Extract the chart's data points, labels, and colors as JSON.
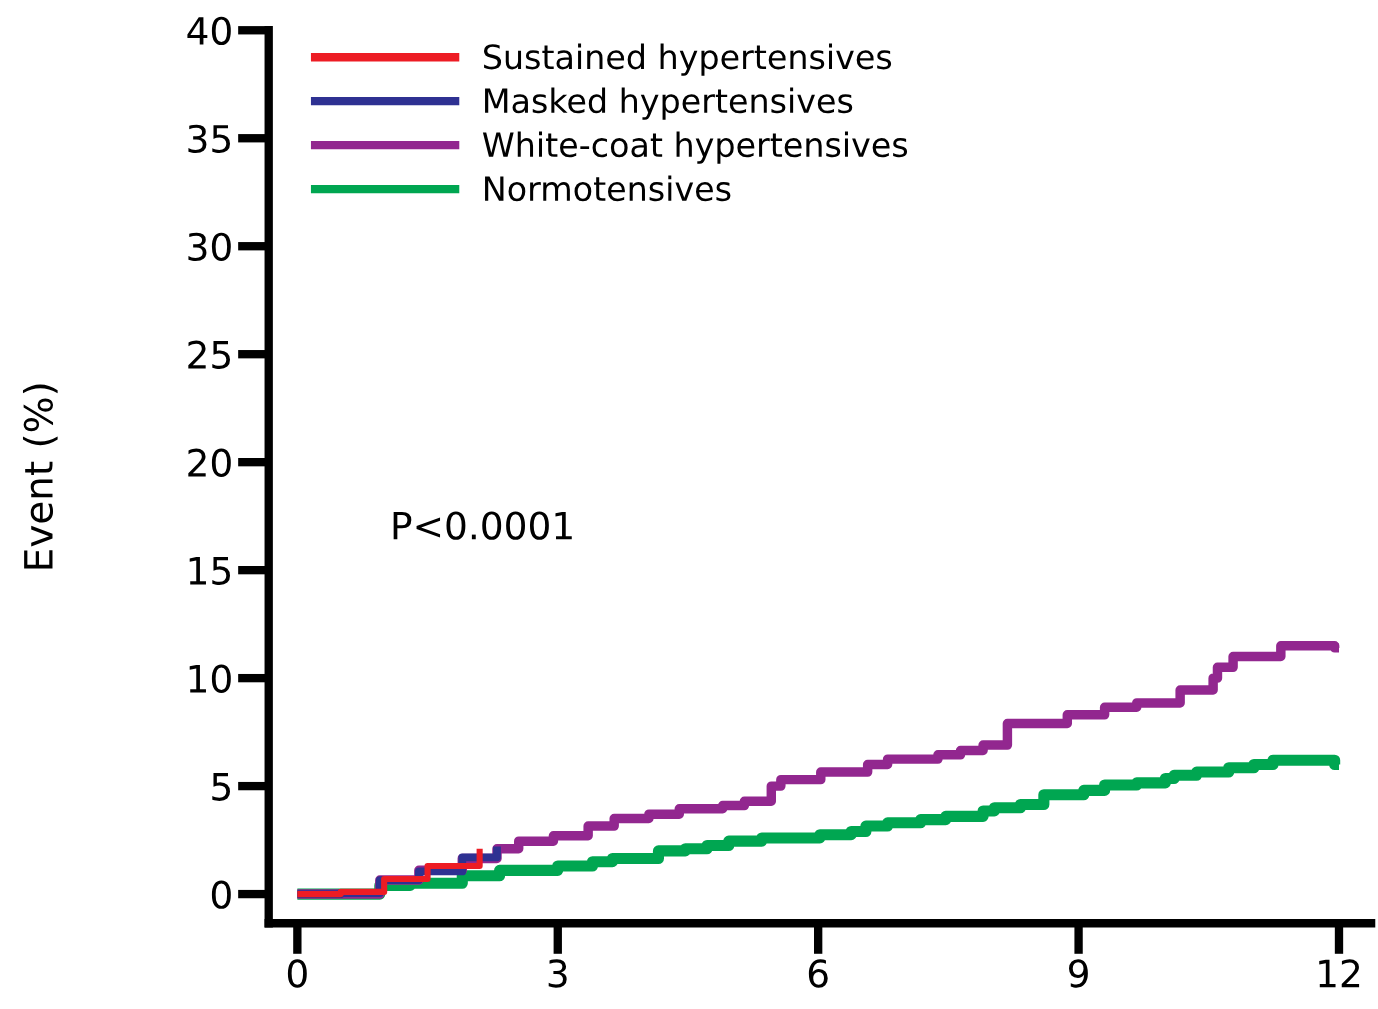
{
  "chart_data": {
    "type": "step",
    "ylabel": "Event (%)",
    "annotations": [
      "P<0.0001"
    ],
    "xlim": [
      -0.33,
      12.37
    ],
    "xticks": [
      0,
      3,
      6,
      9,
      12
    ],
    "ylim": [
      -1.35,
      40
    ],
    "yticks": [
      0,
      5,
      10,
      15,
      20,
      25,
      30,
      35,
      40
    ],
    "grid": false,
    "legend": "top left",
    "line_style": "solid",
    "marker": "none",
    "series": [
      {
        "name": "Sustained hypertensives",
        "color": "#ed1c24",
        "x": [
          0,
          0.5,
          1.0,
          1.5,
          2.1
        ],
        "values": [
          0,
          0.1,
          0.7,
          1.3,
          2.1
        ]
      },
      {
        "name": "Masked hypertensives",
        "color": "#2e3192",
        "x": [
          0,
          0.5,
          0.95,
          1.4,
          1.9,
          2.3
        ],
        "values": [
          0,
          0.05,
          0.65,
          1.05,
          1.7,
          2.2
        ]
      },
      {
        "name": "White-coat hypertensives",
        "color": "#92278f",
        "x": [
          0,
          0.5,
          0.95,
          1.4,
          1.9,
          2.3,
          2.55,
          2.95,
          3.35,
          3.65,
          4.05,
          4.4,
          4.9,
          5.15,
          5.46,
          5.57,
          6.03,
          6.57,
          6.8,
          7.38,
          7.64,
          7.9,
          8.18,
          8.87,
          9.3,
          9.67,
          10.17,
          10.55,
          10.6,
          10.78,
          11.33,
          11.95,
          12.0
        ],
        "values": [
          0,
          0,
          0.65,
          1.1,
          1.65,
          2.1,
          2.45,
          2.7,
          3.15,
          3.5,
          3.7,
          3.95,
          4.1,
          4.3,
          5.0,
          5.3,
          5.65,
          6.0,
          6.25,
          6.45,
          6.65,
          6.9,
          7.9,
          8.3,
          8.65,
          8.85,
          9.45,
          10.0,
          10.5,
          11.0,
          11.5,
          11.4,
          11.4
        ]
      },
      {
        "name": "Normotensives",
        "color": "#00a651",
        "x": [
          0,
          0.95,
          1.3,
          1.9,
          2.33,
          3.0,
          3.4,
          3.63,
          4.16,
          4.47,
          4.72,
          4.97,
          5.35,
          6.02,
          6.38,
          6.55,
          6.8,
          7.18,
          7.47,
          7.9,
          8.03,
          8.33,
          8.6,
          9.06,
          9.3,
          9.67,
          10.0,
          10.1,
          10.36,
          10.73,
          11.02,
          11.24,
          11.95,
          12.0
        ],
        "values": [
          0,
          0.4,
          0.5,
          0.85,
          1.1,
          1.3,
          1.5,
          1.65,
          2.0,
          2.1,
          2.25,
          2.45,
          2.6,
          2.75,
          2.9,
          3.15,
          3.3,
          3.45,
          3.6,
          3.85,
          4.0,
          4.15,
          4.6,
          4.8,
          5.05,
          5.15,
          5.35,
          5.5,
          5.65,
          5.85,
          6.0,
          6.2,
          6.0,
          6.0
        ]
      }
    ]
  }
}
